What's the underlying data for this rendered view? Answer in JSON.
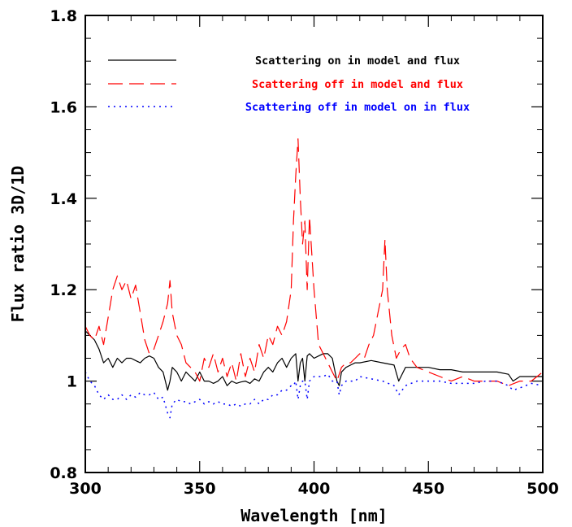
{
  "chart_data": {
    "type": "line",
    "title": "",
    "xlabel": "Wavelength [nm]",
    "ylabel": "Flux ratio 3D/1D",
    "xlim": [
      300,
      500
    ],
    "ylim": [
      0.8,
      1.8
    ],
    "xticks": [
      300,
      350,
      400,
      450,
      500
    ],
    "xtick_labels": [
      "300",
      "350",
      "400",
      "450",
      "500"
    ],
    "yticks": [
      0.8,
      1,
      1.2,
      1.4,
      1.6,
      1.8
    ],
    "ytick_labels": [
      "0.8",
      "1",
      "1.2",
      "1.4",
      "1.6",
      "1.8"
    ],
    "grid": false,
    "legend_position": "top",
    "series": [
      {
        "name": "Scattering on in model and flux",
        "color": "#000000",
        "style": "solid",
        "x": [
          300,
          302,
          304,
          306,
          308,
          310,
          312,
          314,
          316,
          318,
          320,
          322,
          324,
          326,
          328,
          330,
          332,
          334,
          336,
          337,
          338,
          340,
          342,
          344,
          346,
          348,
          350,
          352,
          354,
          356,
          358,
          360,
          362,
          364,
          366,
          368,
          370,
          372,
          374,
          376,
          378,
          380,
          382,
          384,
          386,
          388,
          390,
          392,
          393,
          394,
          395,
          396,
          397,
          398,
          400,
          402,
          404,
          406,
          408,
          410,
          411,
          412,
          414,
          416,
          418,
          420,
          425,
          430,
          435,
          437,
          440,
          445,
          450,
          455,
          460,
          465,
          470,
          475,
          480,
          485,
          487,
          490,
          495,
          500
        ],
        "y": [
          1.11,
          1.1,
          1.09,
          1.07,
          1.04,
          1.05,
          1.03,
          1.05,
          1.04,
          1.05,
          1.05,
          1.045,
          1.04,
          1.05,
          1.055,
          1.05,
          1.03,
          1.02,
          0.98,
          1.0,
          1.03,
          1.02,
          1.0,
          1.02,
          1.01,
          1.0,
          1.02,
          1.0,
          1.0,
          0.995,
          1.0,
          1.01,
          0.99,
          1.0,
          0.995,
          0.998,
          1.0,
          0.995,
          1.005,
          1.0,
          1.02,
          1.03,
          1.02,
          1.04,
          1.05,
          1.03,
          1.05,
          1.06,
          1.0,
          1.04,
          1.05,
          1.0,
          1.055,
          1.06,
          1.05,
          1.055,
          1.06,
          1.06,
          1.05,
          1.0,
          0.99,
          1.02,
          1.03,
          1.035,
          1.04,
          1.04,
          1.045,
          1.04,
          1.035,
          1.0,
          1.03,
          1.03,
          1.03,
          1.025,
          1.025,
          1.02,
          1.02,
          1.02,
          1.02,
          1.015,
          1.0,
          1.01,
          1.01,
          1.01
        ]
      },
      {
        "name": "Scattering off in model and flux",
        "color": "#ff0000",
        "style": "dashed",
        "x": [
          300,
          302,
          304,
          306,
          308,
          310,
          312,
          314,
          316,
          318,
          320,
          322,
          324,
          326,
          328,
          330,
          332,
          334,
          336,
          337,
          338,
          340,
          342,
          344,
          346,
          348,
          350,
          352,
          354,
          356,
          358,
          360,
          362,
          364,
          366,
          368,
          370,
          372,
          374,
          376,
          378,
          380,
          382,
          384,
          386,
          388,
          390,
          391,
          392,
          393,
          394,
          395,
          396,
          397,
          398,
          400,
          402,
          404,
          406,
          408,
          410,
          412,
          414,
          416,
          418,
          420,
          422,
          424,
          426,
          428,
          430,
          431,
          432,
          434,
          436,
          438,
          440,
          442,
          445,
          450,
          455,
          460,
          465,
          470,
          475,
          480,
          485,
          490,
          495,
          500
        ],
        "y": [
          1.12,
          1.1,
          1.09,
          1.12,
          1.08,
          1.14,
          1.2,
          1.23,
          1.2,
          1.22,
          1.18,
          1.21,
          1.15,
          1.09,
          1.06,
          1.07,
          1.1,
          1.13,
          1.17,
          1.22,
          1.15,
          1.1,
          1.08,
          1.04,
          1.03,
          1.02,
          1.0,
          1.05,
          1.03,
          1.06,
          1.02,
          1.05,
          1.01,
          1.04,
          1.0,
          1.06,
          1.01,
          1.05,
          1.02,
          1.08,
          1.05,
          1.1,
          1.08,
          1.12,
          1.1,
          1.13,
          1.2,
          1.35,
          1.45,
          1.53,
          1.4,
          1.3,
          1.35,
          1.2,
          1.36,
          1.2,
          1.08,
          1.06,
          1.04,
          1.02,
          1.0,
          1.03,
          1.04,
          1.04,
          1.05,
          1.06,
          1.05,
          1.08,
          1.1,
          1.15,
          1.2,
          1.31,
          1.2,
          1.1,
          1.05,
          1.07,
          1.08,
          1.05,
          1.03,
          1.02,
          1.01,
          1.0,
          1.01,
          1.0,
          1.0,
          1.0,
          0.99,
          1.0,
          1.0,
          1.02
        ]
      },
      {
        "name": "Scattering off in model on in flux",
        "color": "#0000ff",
        "style": "dotted",
        "x": [
          300,
          302,
          304,
          306,
          308,
          310,
          312,
          314,
          316,
          318,
          320,
          322,
          324,
          326,
          328,
          330,
          332,
          334,
          336,
          337,
          338,
          340,
          342,
          344,
          346,
          348,
          350,
          352,
          354,
          356,
          358,
          360,
          362,
          364,
          366,
          368,
          370,
          372,
          374,
          376,
          378,
          380,
          382,
          384,
          386,
          388,
          390,
          391,
          392,
          393,
          394,
          395,
          396,
          397,
          398,
          400,
          402,
          404,
          406,
          408,
          410,
          411,
          412,
          414,
          416,
          418,
          420,
          425,
          430,
          435,
          437,
          440,
          445,
          450,
          455,
          460,
          465,
          470,
          475,
          480,
          485,
          487,
          490,
          495,
          500
        ],
        "y": [
          1.02,
          1.0,
          0.99,
          0.97,
          0.96,
          0.97,
          0.96,
          0.96,
          0.97,
          0.96,
          0.97,
          0.965,
          0.975,
          0.97,
          0.97,
          0.975,
          0.96,
          0.965,
          0.93,
          0.92,
          0.95,
          0.96,
          0.955,
          0.955,
          0.95,
          0.955,
          0.96,
          0.95,
          0.955,
          0.95,
          0.955,
          0.95,
          0.95,
          0.945,
          0.95,
          0.945,
          0.95,
          0.95,
          0.96,
          0.95,
          0.96,
          0.96,
          0.97,
          0.97,
          0.98,
          0.98,
          0.99,
          0.99,
          1.0,
          0.96,
          0.99,
          1.0,
          1.0,
          0.96,
          1.0,
          1.01,
          1.01,
          1.01,
          1.015,
          1.0,
          1.0,
          0.97,
          0.99,
          1.0,
          1.0,
          1.0,
          1.01,
          1.005,
          1.0,
          0.99,
          0.97,
          0.99,
          1.0,
          1.0,
          1.0,
          0.995,
          0.995,
          0.995,
          1.0,
          1.0,
          0.99,
          0.98,
          0.985,
          0.995,
          0.99
        ]
      }
    ]
  }
}
